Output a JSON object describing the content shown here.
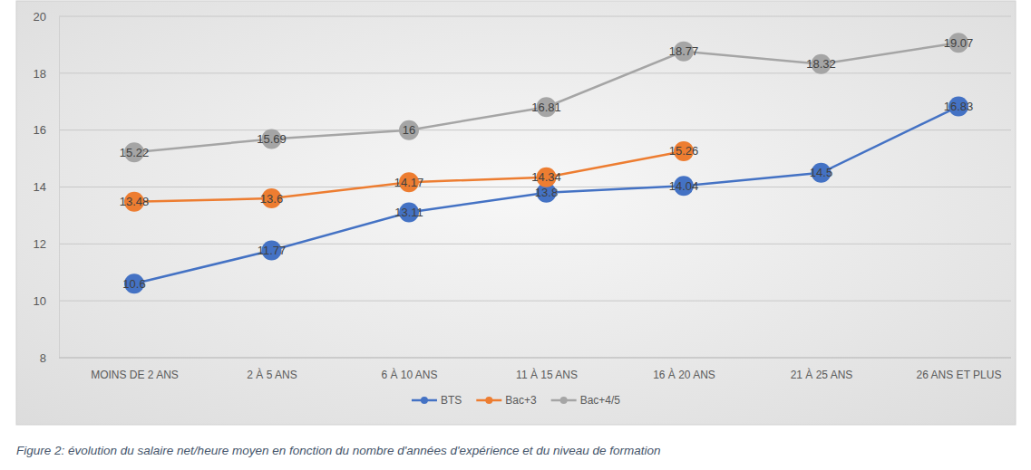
{
  "chart_data": {
    "type": "line",
    "title": "Figure 2: évolution du salaire net/heure moyen en fonction du nombre d'années d'expérience et du niveau de formation",
    "categories": [
      "MOINS DE 2 ANS",
      "2 À 5 ANS",
      "6 À 10 ANS",
      "11 À 15 ANS",
      "16 À 20 ANS",
      "21 À 25 ANS",
      "26 ANS ET PLUS"
    ],
    "series": [
      {
        "name": "BTS",
        "color": "#4472c4",
        "marker": "circle",
        "values": [
          10.6,
          11.77,
          13.11,
          13.8,
          14.04,
          14.5,
          16.83
        ]
      },
      {
        "name": "Bac+3",
        "color": "#ed7d31",
        "marker": "circle",
        "values": [
          13.48,
          13.6,
          14.17,
          14.34,
          15.26,
          null,
          null
        ]
      },
      {
        "name": "Bac+4/5",
        "color": "#a5a5a5",
        "marker": "circle",
        "values": [
          15.22,
          15.69,
          16,
          16.81,
          18.77,
          18.32,
          19.07
        ]
      }
    ],
    "ylim": [
      8,
      20
    ],
    "yticks": [
      8,
      10,
      12,
      14,
      16,
      18,
      20
    ],
    "grid": true,
    "legend": "bottom",
    "data_labels": true
  }
}
